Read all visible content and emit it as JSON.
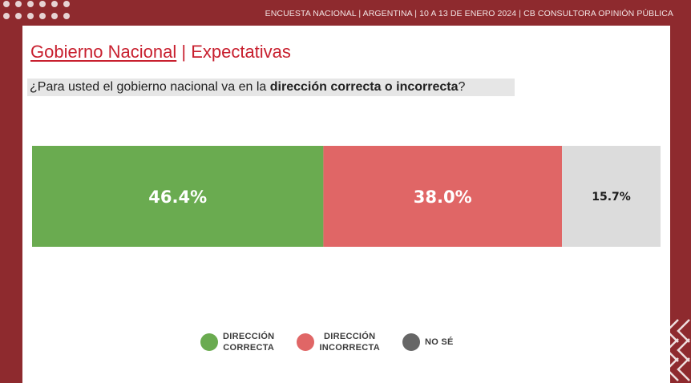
{
  "header": {
    "survey_info": "ENCUESTA NACIONAL  |  ARGENTINA  | 10 A 13 DE ENERO 2024 | CB CONSULTORA OPINIÓN PÚBLICA"
  },
  "title": {
    "main": "Gobierno Nacional",
    "separator": " | ",
    "sub": "Expectativas"
  },
  "question": {
    "prefix": "¿Para usted el gobierno nacional va en la ",
    "bold": "dirección correcta o incorrecta",
    "suffix": "?"
  },
  "chart_data": {
    "type": "bar",
    "orientation": "horizontal-stacked",
    "series": [
      {
        "name": "DIRECCIÓN CORRECTA",
        "value": 46.4,
        "label": "46.4%",
        "color": "#6aab50"
      },
      {
        "name": "DIRECCIÓN INCORRECTA",
        "value": 38.0,
        "label": "38.0%",
        "color": "#e06666"
      },
      {
        "name": "NO SÉ",
        "value": 15.7,
        "label": "15.7%",
        "color": "#dcdcdc"
      }
    ],
    "legend_position": "bottom"
  },
  "legend": [
    {
      "line1": "DIRECCIÓN",
      "line2": "CORRECTA",
      "color": "#6aab50"
    },
    {
      "line1": "DIRECCIÓN",
      "line2": "INCORRECTA",
      "color": "#e06666"
    },
    {
      "line1": "NO SÉ",
      "line2": "",
      "color": "#666666"
    }
  ],
  "colors": {
    "background": "#8e2a2e",
    "accent": "#c8202f"
  }
}
